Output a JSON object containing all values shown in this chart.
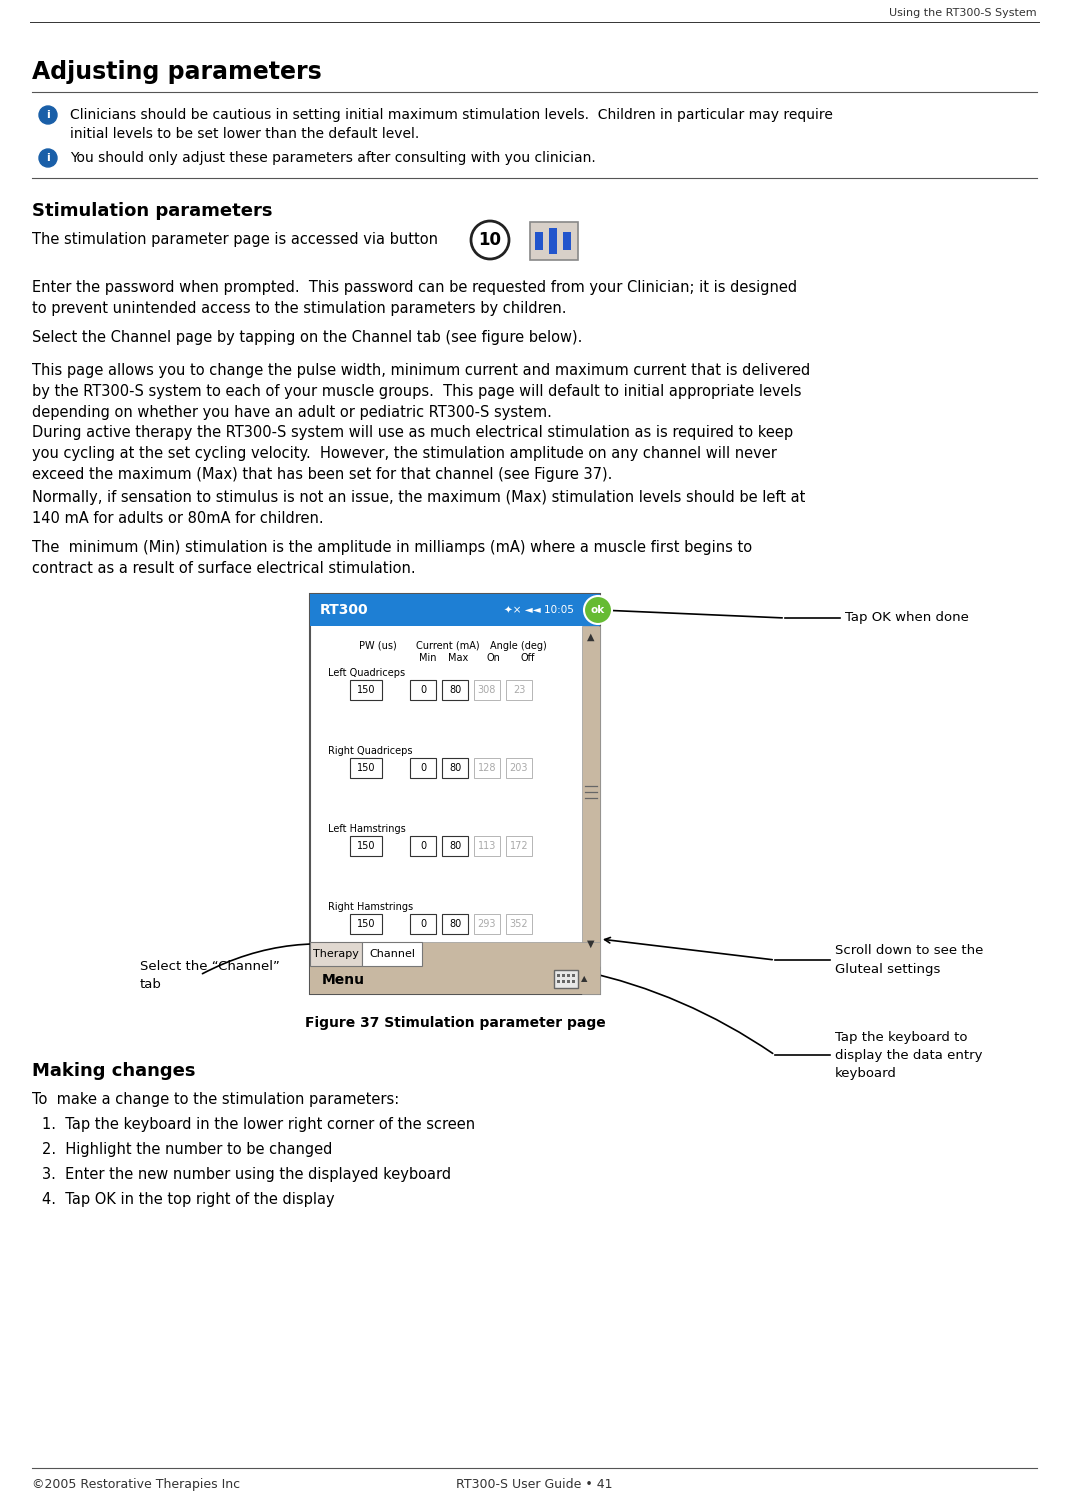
{
  "header_text": "Using the RT300-S System",
  "title": "Adjusting parameters",
  "footer_left": "©2005 Restorative Therapies Inc",
  "footer_center": "RT300-S User Guide • 41",
  "info_bullets": [
    "Clinicians should be cautious in setting initial maximum stimulation levels.  Children in particular may require\ninitial levels to be set lower than the default level.",
    "You should only adjust these parameters after consulting with you clinician."
  ],
  "section1_title": "Stimulation parameters",
  "section1_para1": "The stimulation parameter page is accessed via button",
  "button_num": "10",
  "section1_para2": "Enter the password when prompted.  This password can be requested from your Clinician; it is designed\nto prevent unintended access to the stimulation parameters by children.",
  "section1_para3": "Select the Channel page by tapping on the Channel tab (see figure below).",
  "section1_para4": "This page allows you to change the pulse width, minimum current and maximum current that is delivered\nby the RT300-S system to each of your muscle groups.  This page will default to initial appropriate levels\ndepending on whether you have an adult or pediatric RT300-S system.",
  "section1_para5": "During active therapy the RT300-S system will use as much electrical stimulation as is required to keep\nyou cycling at the set cycling velocity.  However, the stimulation amplitude on any channel will never\nexceed the maximum (Max) that has been set for that channel (see Figure 37).",
  "section1_para6": "Normally, if sensation to stimulus is not an issue, the maximum (Max) stimulation levels should be left at\n140 mA for adults or 80mA for children.",
  "section1_para7": "The  minimum (Min) stimulation is the amplitude in milliamps (mA) where a muscle first begins to\ncontract as a result of surface electrical stimulation.",
  "figure_caption": "Figure 37 Stimulation parameter page",
  "making_changes_title": "Making changes",
  "making_changes_intro": "To  make a change to the stimulation parameters:",
  "making_changes_steps": [
    "Tap the keyboard in the lower right corner of the screen",
    "Highlight the number to be changed",
    "Enter the new number using the displayed keyboard",
    "Tap OK in the top right of the display"
  ],
  "annotation_ok": "Tap OK when done",
  "annotation_channel": "Select the “Channel”\ntab",
  "annotation_scroll": "Scroll down to see the\nGluteal settings",
  "annotation_keyboard": "Tap the keyboard to\ndisplay the data entry\nkeyboard",
  "screen_title": "RT300",
  "screen_time": "★× ◄◄ 10:05",
  "screen_ok": "ok",
  "screen_cols": [
    "PW (us)",
    "Current (mA)",
    "Angle (deg)"
  ],
  "screen_subcols": [
    "Min",
    "Max",
    "On",
    "Off"
  ],
  "screen_rows": [
    {
      "label": "Left Quadriceps",
      "pw": "150",
      "min": "0",
      "max": "80",
      "on": "308",
      "off": "23"
    },
    {
      "label": "Right Quadriceps",
      "pw": "150",
      "min": "0",
      "max": "80",
      "on": "128",
      "off": "203"
    },
    {
      "label": "Left Hamstrings",
      "pw": "150",
      "min": "0",
      "max": "80",
      "on": "113",
      "off": "172"
    },
    {
      "label": "Right Hamstrings",
      "pw": "150",
      "min": "0",
      "max": "80",
      "on": "293",
      "off": "352"
    }
  ],
  "screen_bottom_tabs": [
    "Therapy",
    "Channel"
  ],
  "screen_menu": "Menu",
  "bg_color": "#ffffff",
  "screen_header_color": "#1e7fd4",
  "text_color": "#000000",
  "info_icon_color": "#1a5fa8",
  "scrollbar_color": "#c8b8a2",
  "tab_bar_color": "#c8b8a2",
  "menu_bar_color": "#c8b8a2"
}
